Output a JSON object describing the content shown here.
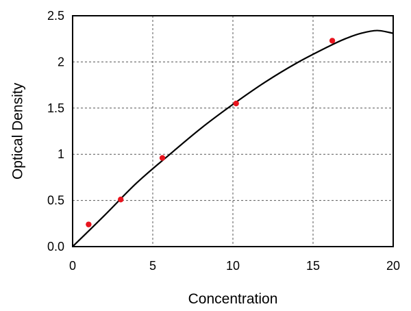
{
  "chart_data": {
    "type": "scatter",
    "title": "",
    "xlabel": "Concentration",
    "ylabel": "Optical Density",
    "xlim": [
      0,
      20
    ],
    "ylim": [
      0,
      2.5
    ],
    "x_ticks": [
      "0",
      "5",
      "10",
      "15",
      "20"
    ],
    "y_ticks": [
      "0.0",
      "0.5",
      "1",
      "1.5",
      "2",
      "2.5"
    ],
    "grid": true,
    "point_color": "#e8141e",
    "line_color": "#000000",
    "series": [
      {
        "x": [
          1,
          3,
          5.6,
          10.2,
          16.2
        ],
        "y": [
          0.24,
          0.51,
          0.96,
          1.55,
          2.23
        ]
      }
    ],
    "fit_curve": {
      "x": [
        0,
        2,
        4,
        6,
        8,
        10,
        12,
        14,
        16,
        17,
        18,
        19,
        20
      ],
      "y": [
        0.0,
        0.34,
        0.69,
        0.99,
        1.28,
        1.54,
        1.78,
        1.99,
        2.17,
        2.25,
        2.31,
        2.34,
        2.31
      ]
    }
  }
}
